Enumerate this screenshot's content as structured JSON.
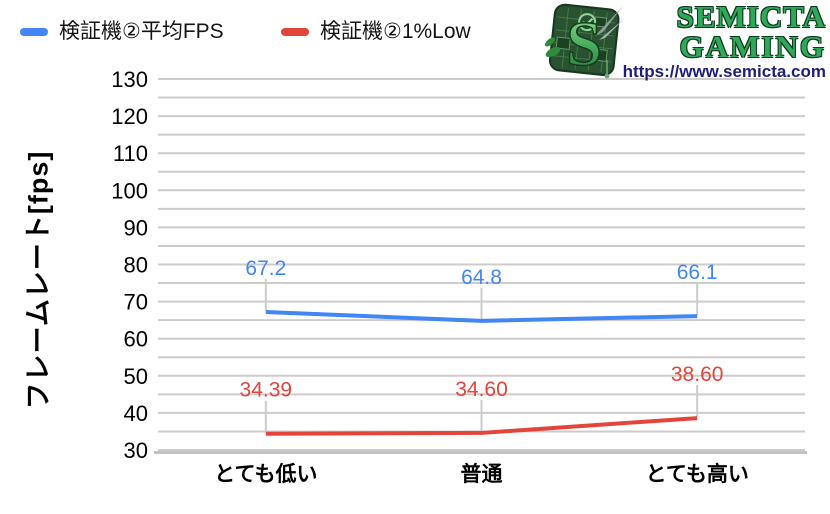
{
  "legend": {
    "items": [
      {
        "label": "検証機②平均FPS",
        "color": "#4285f4"
      },
      {
        "label": "検証機②1%Low",
        "color": "#e3453a"
      }
    ]
  },
  "logo": {
    "monogram": "S",
    "line1": "SEMICTA",
    "line2": "GAMING",
    "url": "https://www.semicta.com",
    "text_color": "#2fa85a",
    "url_color": "#1f1f7a"
  },
  "chart_data": {
    "type": "line",
    "categories": [
      "とても低い",
      "普通",
      "とても高い"
    ],
    "series": [
      {
        "name": "検証機②平均FPS",
        "color": "#4285f4",
        "values": [
          67.2,
          64.8,
          66.1
        ],
        "labels": [
          "67.2",
          "64.8",
          "66.1"
        ]
      },
      {
        "name": "検証機②1%Low",
        "color": "#e3453a",
        "values": [
          34.39,
          34.6,
          38.6
        ],
        "labels": [
          "34.39",
          "34.60",
          "38.60"
        ]
      }
    ],
    "title": "",
    "xlabel": "",
    "ylabel": "フレームレート[fps]",
    "ylim": [
      30,
      130
    ],
    "ytick_step": 10,
    "grid_step": 5,
    "grid_on": true,
    "grid_color": "#cccccc",
    "axis_line_color": "#c2c2c2",
    "tick_label_color": "#000000",
    "legend_position": "top-left"
  }
}
